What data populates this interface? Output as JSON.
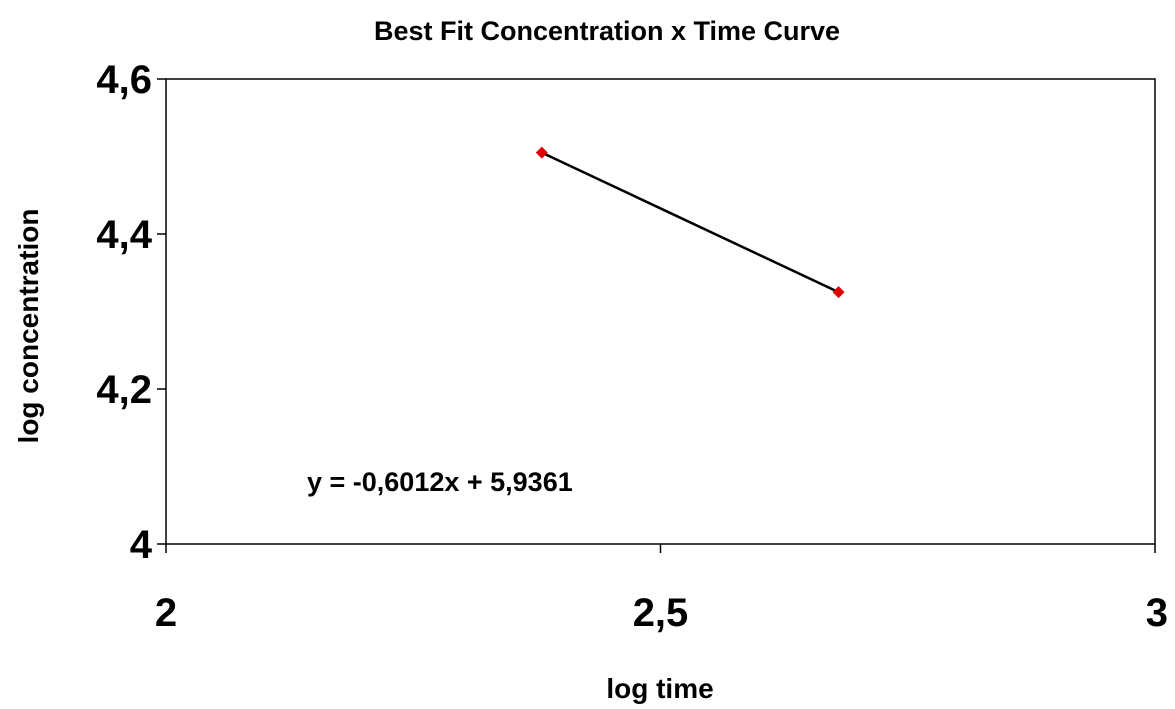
{
  "chart_data": {
    "type": "scatter",
    "title": "Best Fit Concentration x Time Curve",
    "xlabel": "log time",
    "ylabel": "log concentration",
    "xlim": [
      2,
      3
    ],
    "ylim": [
      4,
      4.6
    ],
    "x_ticks": [
      2,
      2.5,
      3
    ],
    "y_ticks": [
      4,
      4.2,
      4.4,
      4.6
    ],
    "x_tick_labels": [
      "2",
      "2,5",
      "3"
    ],
    "y_tick_labels": [
      "4",
      "4,2",
      "4,4",
      "4,6"
    ],
    "grid": false,
    "series": [
      {
        "x": [
          2.38,
          2.68
        ],
        "y": [
          4.505,
          4.325
        ],
        "marker": "diamond",
        "color": "#e00000"
      }
    ],
    "trendline": {
      "x": [
        2.38,
        2.68
      ],
      "y": [
        4.505,
        4.325
      ],
      "color": "#000000",
      "equation": "y = -0,6012x + 5,9361"
    }
  }
}
